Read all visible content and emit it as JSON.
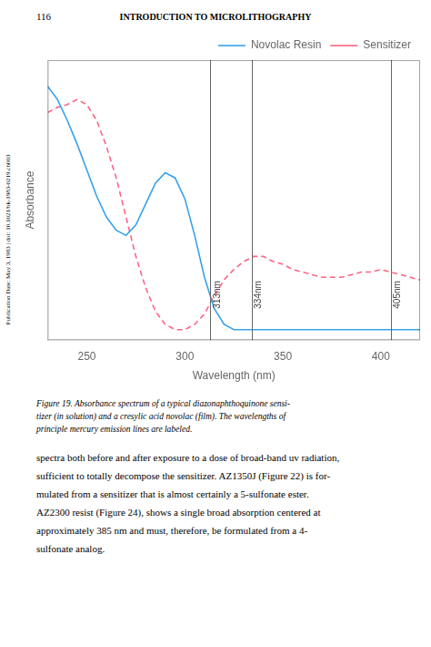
{
  "chart_data": {
    "type": "line",
    "page_number": "116",
    "page_header": "INTRODUCTION TO MICROLITHOGRAPHY",
    "sidebar_text": "Publication Date: May 3, 1983 | doi: 10.1021/bk-1983-0219.ch003",
    "caption": [
      "Figure 19. Absorbance spectrum of a typical diazonaphthoquinone sensi-",
      "tizer (in solution) and a cresylic acid novolac (film).  The wavelengths of",
      "principle mercury emission lines are labeled."
    ],
    "body_text": [
      "spectra both before and after exposure to a dose of broad-band uv radiation,",
      "sufficient to totally decompose the sensitizer.  AZ1350J (Figure 22) is for-",
      "mulated from a sensitizer that is almost certainly a 5-sulfonate ester.",
      "AZ2300 resist (Figure 24), shows a single broad absorption centered at",
      "approximately 385 nm and must, therefore, be formulated from a 4-",
      "sulfonate analog."
    ],
    "x_label": "Wavelength (nm)",
    "y_label": "Absorbance",
    "x": [
      230,
      235,
      240,
      245,
      250,
      255,
      260,
      265,
      270,
      275,
      280,
      285,
      290,
      295,
      300,
      305,
      310,
      315,
      320,
      325,
      330,
      335,
      340,
      345,
      350,
      355,
      360,
      365,
      370,
      375,
      380,
      385,
      390,
      395,
      400,
      405,
      410,
      415,
      420
    ],
    "series": [
      {
        "name": "Novolac Resin",
        "line_style": "solid",
        "values": [
          0.95,
          0.9,
          0.82,
          0.73,
          0.63,
          0.53,
          0.45,
          0.4,
          0.38,
          0.42,
          0.5,
          0.58,
          0.62,
          0.6,
          0.52,
          0.38,
          0.22,
          0.1,
          0.04,
          0.02,
          0.02,
          0.02,
          0.02,
          0.02,
          0.02,
          0.02,
          0.02,
          0.02,
          0.02,
          0.02,
          0.02,
          0.02,
          0.02,
          0.02,
          0.02,
          0.02,
          0.02,
          0.02,
          0.02
        ]
      },
      {
        "name": "Sensitizer",
        "line_style": "dashed",
        "values": [
          0.85,
          0.87,
          0.88,
          0.9,
          0.88,
          0.82,
          0.72,
          0.6,
          0.45,
          0.3,
          0.18,
          0.09,
          0.04,
          0.02,
          0.02,
          0.04,
          0.08,
          0.15,
          0.21,
          0.25,
          0.28,
          0.3,
          0.3,
          0.28,
          0.27,
          0.25,
          0.24,
          0.23,
          0.22,
          0.22,
          0.22,
          0.23,
          0.24,
          0.24,
          0.25,
          0.24,
          0.23,
          0.22,
          0.21
        ]
      }
    ],
    "annotations": [
      {
        "x": 313,
        "y": 0.1,
        "text": "313nm"
      },
      {
        "x": 334,
        "y": 0.1,
        "text": "334nm"
      },
      {
        "x": 405,
        "y": 0.1,
        "text": "405nm"
      }
    ],
    "xlim": [
      230,
      420
    ],
    "xticks": [
      250,
      300,
      350,
      400
    ],
    "ylim": [
      -0.02,
      1.05
    ],
    "tick_labels": "x",
    "grid": false,
    "legend": "upper right"
  }
}
